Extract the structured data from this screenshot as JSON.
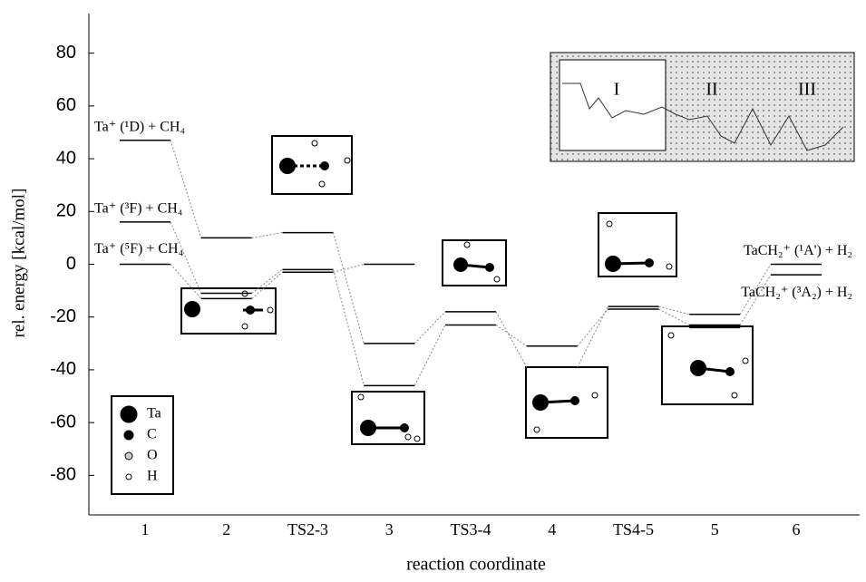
{
  "chart_data": {
    "type": "energy-profile",
    "xlabel": "reaction coordinate",
    "ylabel": "rel. energy [kcal/mol]",
    "categories": [
      "1",
      "2",
      "TS2-3",
      "3",
      "TS3-4",
      "4",
      "TS4-5",
      "5",
      "6"
    ],
    "series": [
      {
        "color": "#000000",
        "values": [
          47,
          10,
          12,
          -30,
          -18,
          -39,
          -16,
          -19,
          0
        ]
      },
      {
        "color": "#000000",
        "values": [
          16,
          -11,
          -2,
          -46,
          -23,
          -31,
          -17,
          -23,
          -4
        ]
      },
      {
        "color": "#000000",
        "values": [
          0,
          -13,
          -3,
          0,
          null,
          null,
          null,
          -24,
          null
        ]
      }
    ],
    "ylim": [
      -95,
      95
    ],
    "yticks": [
      -80,
      -60,
      -40,
      -20,
      0,
      20,
      40,
      60,
      80
    ],
    "annotations": [
      "Ta⁺ (¹D) + CH₄",
      "Ta⁺ (³F) + CH₄",
      "Ta⁺ (⁵F) + CH₄",
      "TaCH₂⁺ (¹A') + H₂",
      "TaCH₂⁺ (³A₂) + H₂"
    ],
    "atom_legend": [
      "Ta",
      "C",
      "O",
      "H"
    ],
    "inset_labels": [
      "I",
      "II",
      "III"
    ]
  }
}
